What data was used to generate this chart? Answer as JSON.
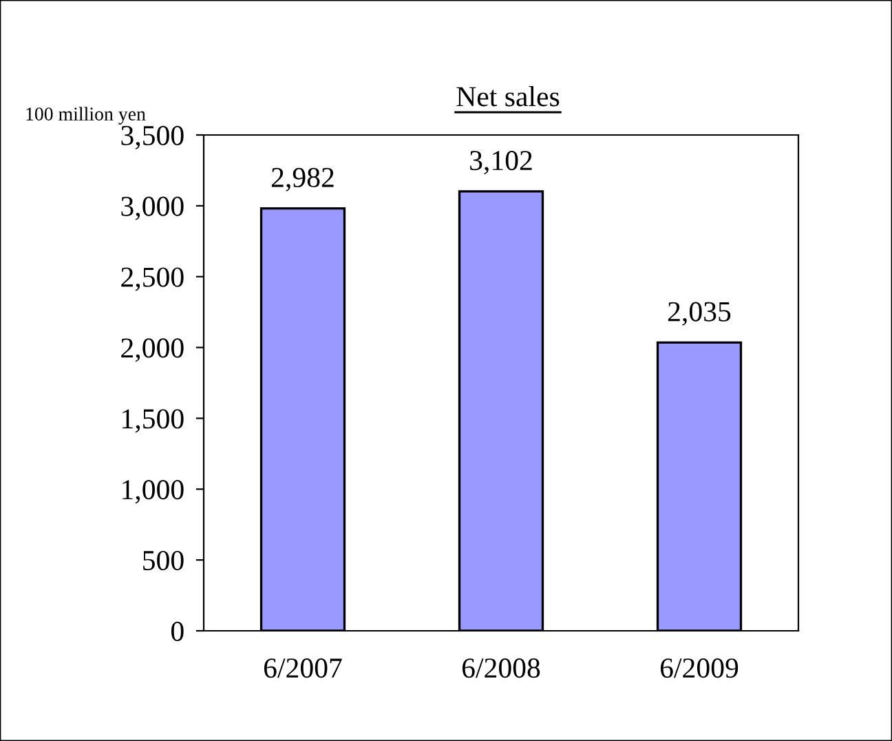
{
  "chart_data": {
    "type": "bar",
    "title": "Net sales",
    "ylabel": "100 million yen",
    "categories": [
      "6/2007",
      "6/2008",
      "6/2009"
    ],
    "values": [
      2982,
      3102,
      2035
    ],
    "value_labels": [
      "2,982",
      "3,102",
      "2,035"
    ],
    "color": "#9999ff",
    "ylim": [
      0,
      3500
    ],
    "yticks": [
      0,
      {
        "value": 500,
        "label": "500"
      },
      {
        "value": 1000,
        "label": "1,000"
      },
      {
        "value": 1500,
        "label": "1,500"
      },
      {
        "value": 2000,
        "label": "2,000"
      },
      {
        "value": 2500,
        "label": "2,500"
      },
      {
        "value": 3000,
        "label": "3,000"
      },
      {
        "value": 3500,
        "label": "3,500"
      }
    ],
    "grid": false,
    "legend": false
  }
}
